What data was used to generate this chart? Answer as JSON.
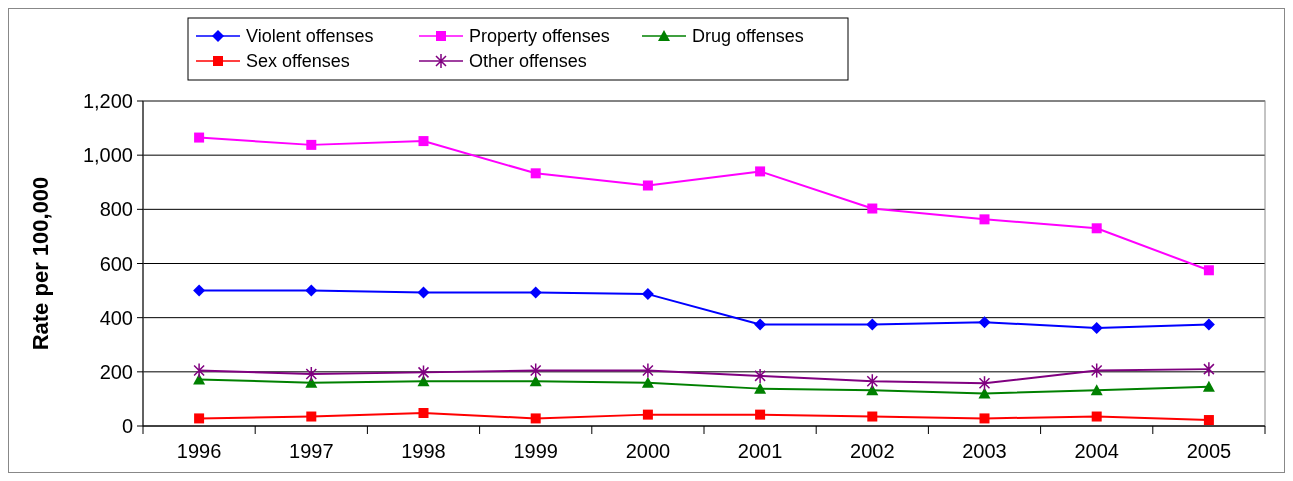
{
  "chart_data": {
    "type": "line",
    "ylabel": "Rate per 100,000",
    "categories": [
      "1996",
      "1997",
      "1998",
      "1999",
      "2000",
      "2001",
      "2002",
      "2003",
      "2004",
      "2005"
    ],
    "ylim": [
      0,
      1200
    ],
    "yticks": [
      0,
      {
        "value": 200,
        "label": "200"
      },
      {
        "value": 400,
        "label": "400"
      },
      {
        "value": 600,
        "label": "600"
      },
      {
        "value": 800,
        "label": "800"
      },
      {
        "value": 1000,
        "label": "1,000"
      },
      {
        "value": 1200,
        "label": "1,200"
      }
    ],
    "grid": "y",
    "legend": "top",
    "series": [
      {
        "name": "Violent offenses",
        "color": "#0000ff",
        "marker": "diamond",
        "values": [
          500,
          500,
          493,
          493,
          487,
          375,
          375,
          383,
          362,
          375
        ]
      },
      {
        "name": "Property offenses",
        "color": "#ff00ff",
        "marker": "square",
        "values": [
          1065,
          1038,
          1052,
          933,
          888,
          940,
          803,
          763,
          730,
          575
        ]
      },
      {
        "name": "Drug offenses",
        "color": "#008000",
        "marker": "triangle",
        "values": [
          172,
          160,
          165,
          165,
          160,
          138,
          132,
          120,
          132,
          145
        ]
      },
      {
        "name": "Sex offenses",
        "color": "#ff0000",
        "marker": "square",
        "values": [
          28,
          35,
          48,
          28,
          42,
          42,
          35,
          28,
          35,
          22
        ]
      },
      {
        "name": "Other offenses",
        "color": "#800080",
        "marker": "cross",
        "values": [
          205,
          192,
          198,
          205,
          205,
          185,
          165,
          158,
          205,
          210
        ]
      }
    ]
  }
}
